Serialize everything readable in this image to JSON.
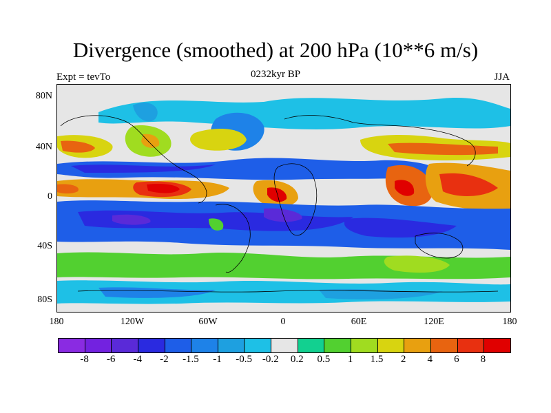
{
  "title": "Divergence (smoothed) at 200 hPa (10**6 m/s)",
  "subtitle_left": "Expt = tevTo",
  "subtitle_center": "0232kyr BP",
  "subtitle_right": "JJA",
  "lat_ticks": [
    "80N",
    "40N",
    "0",
    "40S",
    "80S"
  ],
  "lon_ticks": [
    "180",
    "120W",
    "60W",
    "0",
    "60E",
    "120E",
    "180"
  ],
  "colorbar": {
    "colors": [
      "#8a2be2",
      "#7322e0",
      "#5a2ad8",
      "#2a2ae0",
      "#1e5ee8",
      "#1e82e8",
      "#1ea0e0",
      "#1ec0e6",
      "#e6e6e6",
      "#12d090",
      "#52d030",
      "#a0dc20",
      "#d8d410",
      "#e8a010",
      "#e86410",
      "#e83010",
      "#e00000"
    ],
    "labels": [
      "-8",
      "-6",
      "-4",
      "-2",
      "-1.5",
      "-1",
      "-0.5",
      "-0.2",
      "0.2",
      "0.5",
      "1",
      "1.5",
      "2",
      "4",
      "6",
      "8"
    ]
  }
}
